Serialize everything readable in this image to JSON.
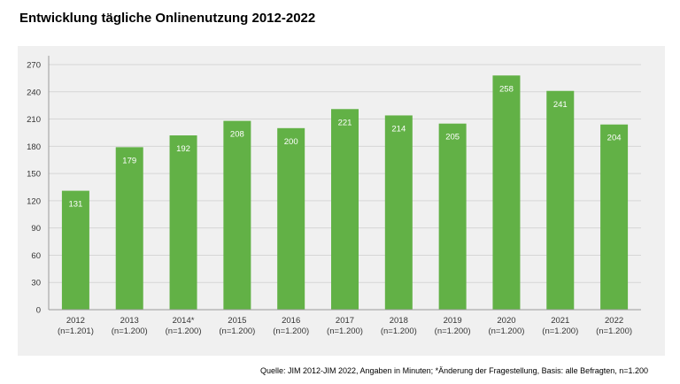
{
  "title": "Entwicklung tägliche Onlinenutzung 2012-2022",
  "source": "Quelle: JIM 2012-JIM 2022, Angaben in Minuten; *Änderung der Fragestellung, Basis: alle Befragten, n=1.200",
  "colors": {
    "bar": "#62b146",
    "grid": "#d6d6d6",
    "axis": "#9a9a9a",
    "background": "#f0f0f0",
    "label_inside": "#ffffff"
  },
  "chart_data": {
    "type": "bar",
    "title": "Entwicklung tägliche Onlinenutzung 2012-2022",
    "categories": [
      "2012",
      "2013",
      "2014*",
      "2015",
      "2016",
      "2017",
      "2018",
      "2019",
      "2020",
      "2021",
      "2022"
    ],
    "sublabels": [
      "(n=1.201)",
      "(n=1.200)",
      "(n=1.200)",
      "(n=1.200)",
      "(n=1.200)",
      "(n=1.200)",
      "(n=1.200)",
      "(n=1.200)",
      "(n=1.200)",
      "(n=1.200)",
      "(n=1.200)"
    ],
    "values": [
      131,
      179,
      192,
      208,
      200,
      221,
      214,
      205,
      258,
      241,
      204
    ],
    "yticks": [
      0,
      30,
      60,
      90,
      120,
      150,
      180,
      210,
      240,
      270
    ],
    "ylim": [
      0,
      270
    ],
    "grid": true,
    "legend": "none"
  }
}
